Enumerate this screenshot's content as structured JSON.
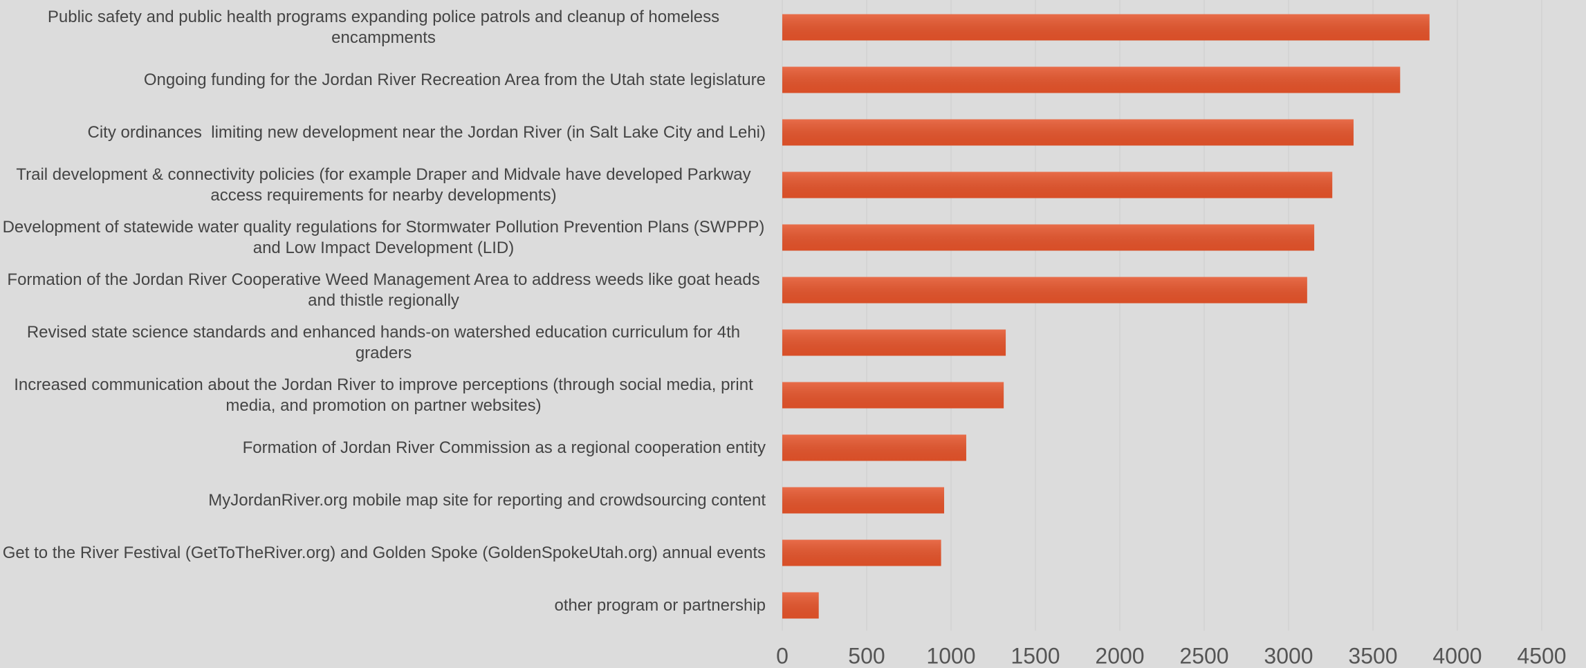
{
  "chart_data": {
    "type": "bar",
    "orientation": "horizontal",
    "categories": [
      "Public safety and public health programs expanding police patrols and cleanup of homeless encampments",
      "Ongoing funding for the Jordan River Recreation Area from the Utah state legislature",
      "City ordinances  limiting new development near the Jordan River (in Salt Lake City and Lehi)",
      "Trail development & connectivity policies (for example Draper and Midvale have developed Parkway access requirements for nearby developments)",
      "Development of statewide water quality regulations for Stormwater Pollution Prevention Plans (SWPPP) and Low Impact Development (LID)",
      "Formation of the Jordan River Cooperative Weed Management Area to address weeds like goat heads and thistle regionally",
      "Revised state science standards and enhanced hands-on watershed education curriculum for 4th graders",
      "Increased communication about the Jordan River to improve perceptions (through social media, print media, and promotion on partner websites)",
      "Formation of Jordan River Commission as a regional cooperation entity",
      "MyJordanRiver.org mobile map site for reporting and crowdsourcing content",
      "Get to the River Festival (GetToTheRiver.org) and Golden Spoke (GoldenSpokeUtah.org) annual events",
      "other program or partnership"
    ],
    "values": [
      3835,
      3661,
      3385,
      3259,
      3152,
      3110,
      1324,
      1312,
      1090,
      959,
      941,
      216
    ],
    "color": "#e4532a",
    "xlim": [
      0,
      4500
    ],
    "xticks": [
      0,
      500,
      1000,
      1500,
      2000,
      2500,
      3000,
      3500,
      4000,
      4500
    ],
    "grid": true
  }
}
